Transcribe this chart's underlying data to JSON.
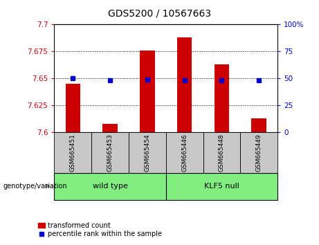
{
  "title": "GDS5200 / 10567663",
  "samples": [
    "GSM665451",
    "GSM665453",
    "GSM665454",
    "GSM665446",
    "GSM665448",
    "GSM665449"
  ],
  "red_values": [
    7.645,
    7.608,
    7.676,
    7.688,
    7.663,
    7.613
  ],
  "blue_values": [
    50,
    48,
    49,
    48,
    48,
    48
  ],
  "ymin": 7.6,
  "ymax": 7.7,
  "y2min": 0,
  "y2max": 100,
  "yticks": [
    7.6,
    7.625,
    7.65,
    7.675,
    7.7
  ],
  "y2ticks": [
    0,
    25,
    50,
    75,
    100
  ],
  "bar_color": "#cc0000",
  "dot_color": "#0000cc",
  "wild_type_label": "wild type",
  "klf5_label": "KLF5 null",
  "genotype_label": "genotype/variation",
  "legend_red": "transformed count",
  "legend_blue": "percentile rank within the sample",
  "green_color": "#80ee80",
  "tick_bg_color": "#c8c8c8",
  "left_axis_color": "#cc0000",
  "right_axis_color": "#0000cc",
  "bar_width": 0.4
}
